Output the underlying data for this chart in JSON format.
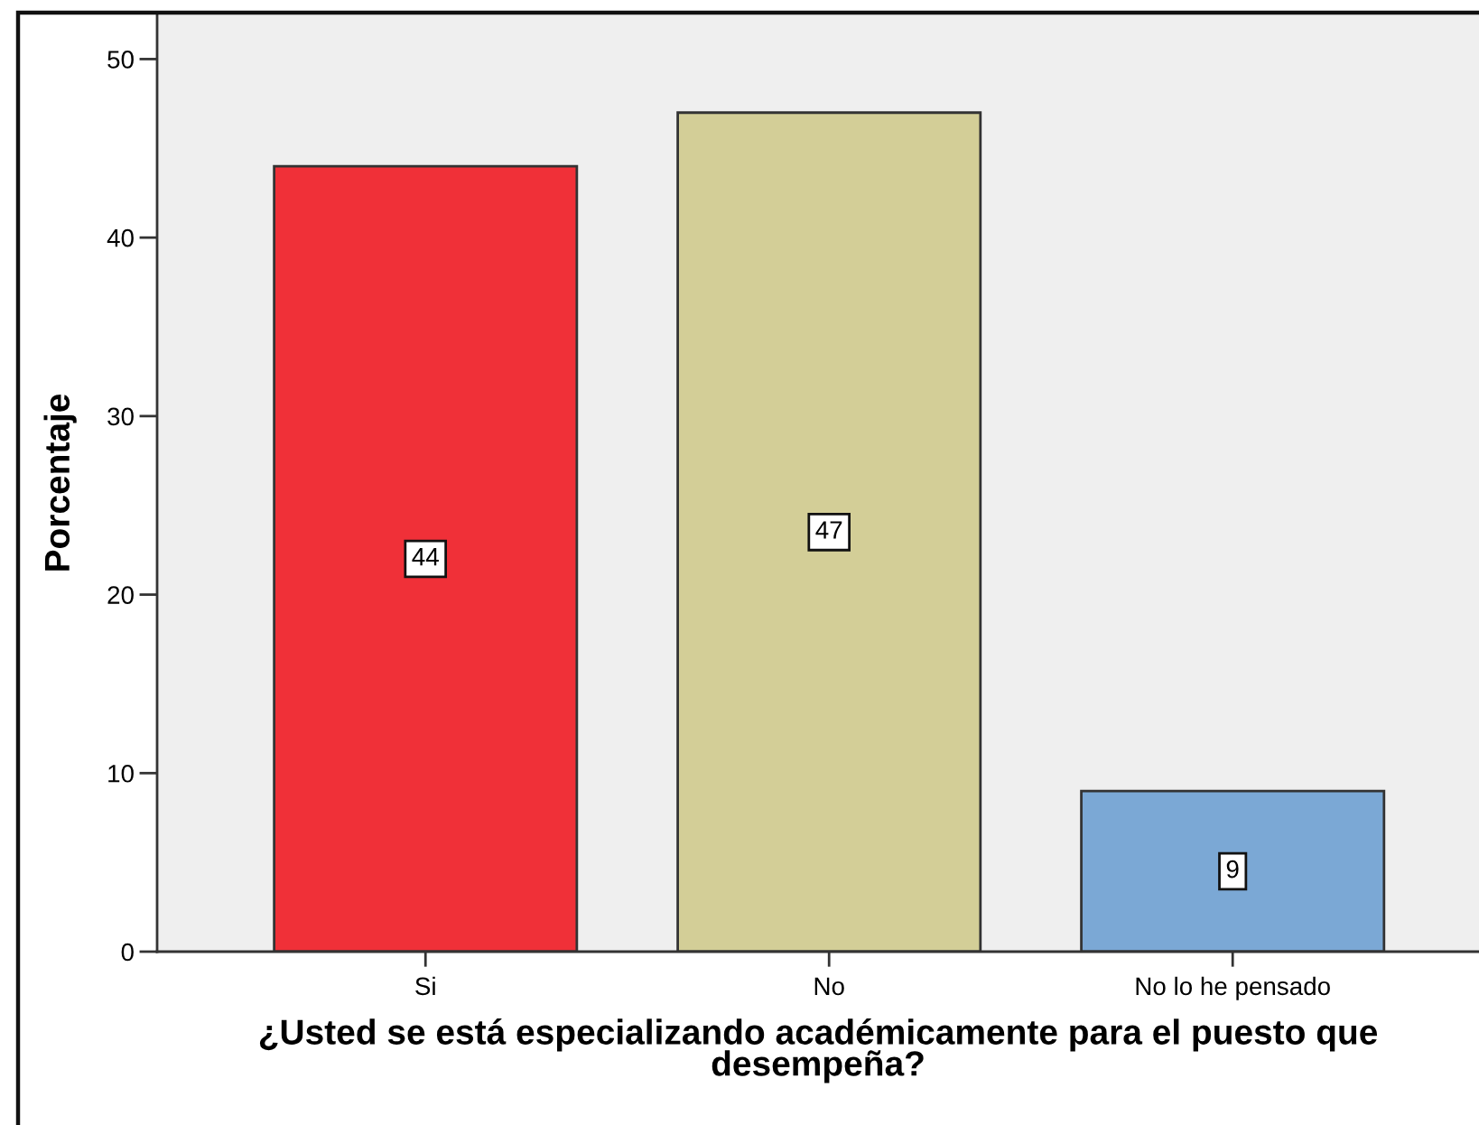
{
  "chart_data": {
    "type": "bar",
    "xlabel": "¿Usted se está especializando académicamente para el puesto que desempeña?",
    "ylabel": "Porcentaje",
    "categories": [
      "Si",
      "No",
      "No lo he pensado"
    ],
    "values": [
      44,
      47,
      9
    ],
    "colors": [
      "#f03038",
      "#d3ce97",
      "#7ba8d5"
    ],
    "ylim": [
      0,
      52.5
    ],
    "yticks": [
      0,
      10,
      20,
      30,
      40,
      50
    ],
    "data_labels": true,
    "grid": false
  }
}
